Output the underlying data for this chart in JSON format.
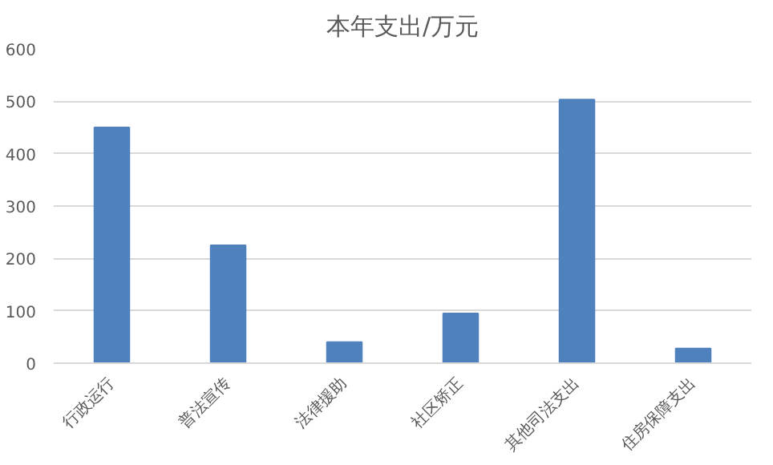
{
  "chart_data": {
    "type": "bar",
    "title": "本年支出/万元",
    "categories": [
      "行政运行",
      "普法宣传",
      "法律援助",
      "社区矫正",
      "其他司法支出",
      "住房保障支出"
    ],
    "values": [
      450,
      225,
      40,
      95,
      503,
      28
    ],
    "color": "#4f81bd",
    "ylim": [
      0,
      600
    ],
    "yticks": [
      0,
      100,
      200,
      300,
      400,
      500,
      600
    ],
    "grid": "y"
  }
}
